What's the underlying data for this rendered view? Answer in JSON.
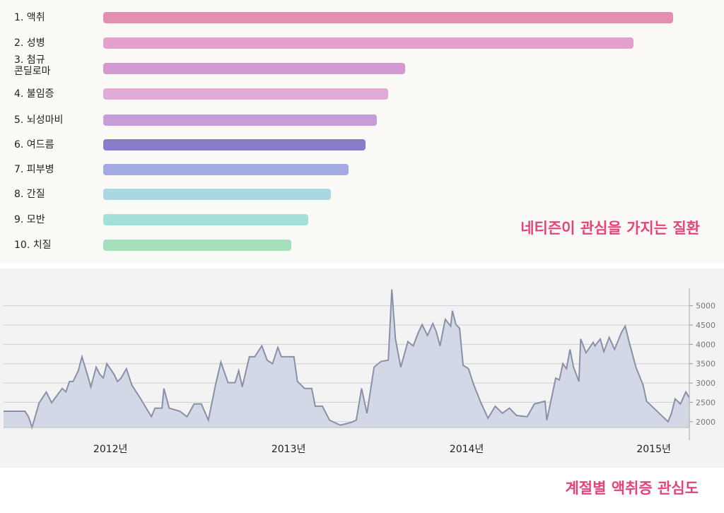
{
  "chart_data": [
    {
      "type": "bar",
      "orientation": "horizontal",
      "title": "네티즌이 관심을 가지는 질환",
      "categories": [
        "1. 액취",
        "2. 성병",
        "3. 첨규\n콘딜로마",
        "4. 불임증",
        "5. 뇌성마비",
        "6. 여드름",
        "7. 피부병",
        "8. 간질",
        "9. 모반",
        "10. 치질"
      ],
      "values": [
        100,
        93,
        53,
        50,
        48,
        46,
        43,
        40,
        36,
        33
      ],
      "colors": [
        "#e48fb0",
        "#e3a2cb",
        "#d39ad2",
        "#e0aad9",
        "#c89bd9",
        "#8a7cc9",
        "#a3a9e1",
        "#a9d8e2",
        "#a3e0d9",
        "#a3e0bb"
      ]
    },
    {
      "type": "area",
      "title": "계절별 액취증 관심도",
      "x": [
        2011.9,
        2012.02,
        2012.04,
        2012.06,
        2012.1,
        2012.14,
        2012.17,
        2012.2,
        2012.23,
        2012.25,
        2012.27,
        2012.29,
        2012.32,
        2012.34,
        2012.37,
        2012.39,
        2012.42,
        2012.44,
        2012.46,
        2012.48,
        2012.52,
        2012.54,
        2012.56,
        2012.59,
        2012.62,
        2012.67,
        2012.73,
        2012.75,
        2012.79,
        2012.8,
        2012.83,
        2012.89,
        2012.93,
        2012.97,
        2013.01,
        2013.05,
        2013.09,
        2013.12,
        2013.16,
        2013.2,
        2013.22,
        2013.24,
        2013.28,
        2013.31,
        2013.35,
        2013.38,
        2013.41,
        2013.44,
        2013.46,
        2013.49,
        2013.53,
        2013.55,
        2013.59,
        2013.63,
        2013.65,
        2013.69,
        2013.73,
        2013.79,
        2013.85,
        2013.88,
        2013.91,
        2013.94,
        2013.98,
        2013.99,
        2014.02,
        2014.06,
        2014.08,
        2014.1,
        2014.13,
        2014.17,
        2014.2,
        2014.23,
        2014.25,
        2014.28,
        2014.31,
        2014.33,
        2014.35,
        2014.38,
        2014.41,
        2014.42,
        2014.44,
        2014.46,
        2014.48,
        2014.51,
        2014.54,
        2014.58,
        2014.62,
        2014.66,
        2014.7,
        2014.74,
        2014.78,
        2014.84,
        2014.88,
        2014.94,
        2014.95,
        2015.0,
        2015.02,
        2015.04,
        2015.06,
        2015.08,
        2015.1,
        2015.13,
        2015.14,
        2015.17,
        2015.21,
        2015.22,
        2015.25,
        2015.27,
        2015.3,
        2015.33,
        2015.37,
        2015.39,
        2015.41,
        2015.45,
        2015.49,
        2015.51,
        2015.56,
        2015.63,
        2015.65,
        2015.67,
        2015.7,
        2015.73,
        2015.75
      ],
      "values": [
        2270,
        2270,
        2130,
        1850,
        2490,
        2770,
        2490,
        2680,
        2860,
        2770,
        3040,
        3040,
        3320,
        3680,
        3230,
        2900,
        3410,
        3230,
        3130,
        3500,
        3230,
        3040,
        3130,
        3370,
        2950,
        2590,
        2130,
        2350,
        2350,
        2860,
        2350,
        2270,
        2130,
        2460,
        2460,
        2040,
        2950,
        3540,
        3010,
        3010,
        3320,
        2900,
        3680,
        3680,
        3960,
        3590,
        3500,
        3920,
        3680,
        3680,
        3680,
        3040,
        2860,
        2860,
        2400,
        2400,
        2040,
        1910,
        1980,
        2040,
        2860,
        2220,
        3410,
        3450,
        3560,
        3590,
        5420,
        4140,
        3410,
        4070,
        3960,
        4320,
        4510,
        4230,
        4540,
        4320,
        3960,
        4650,
        4470,
        4870,
        4510,
        4420,
        3460,
        3370,
        2950,
        2490,
        2090,
        2400,
        2220,
        2350,
        2160,
        2130,
        2460,
        2530,
        2040,
        3130,
        3080,
        3500,
        3370,
        3870,
        3410,
        3040,
        4140,
        3780,
        4050,
        3960,
        4140,
        3810,
        4180,
        3870,
        4320,
        4470,
        4100,
        3410,
        2950,
        2530,
        2310,
        2000,
        2220,
        2590,
        2460,
        2770,
        2620
      ],
      "color": "#8a90a8",
      "fill": "#d3d8e6",
      "xlim": [
        2011.9,
        2015.75
      ],
      "ylim": [
        1850,
        5450
      ],
      "xticks": [
        {
          "value": 2012.5,
          "label": "2012년"
        },
        {
          "value": 2013.5,
          "label": "2013년"
        },
        {
          "value": 2014.5,
          "label": "2014년"
        },
        {
          "value": 2015.55,
          "label": "2015년"
        }
      ],
      "yticks": [
        2000,
        2500,
        3000,
        3500,
        4000,
        4500,
        5000
      ],
      "grid": true
    }
  ]
}
